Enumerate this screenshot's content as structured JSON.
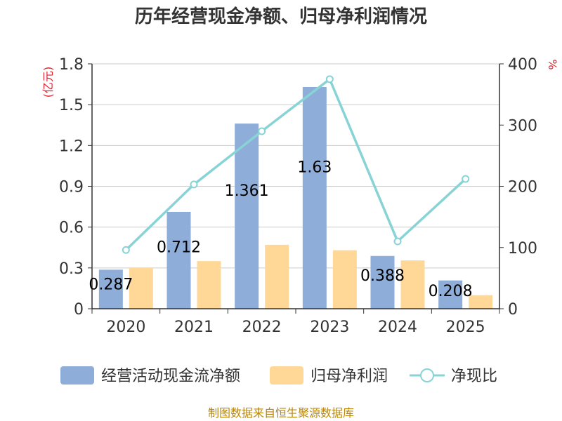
{
  "chart_data": {
    "type": "bar",
    "title": "历年经营现金净额、归母净利润情况",
    "categories": [
      "2020",
      "2021",
      "2022",
      "2023",
      "2024",
      "2025"
    ],
    "series": [
      {
        "name": "经营活动现金流净额",
        "type": "bar",
        "axis": "left",
        "values": [
          0.287,
          0.712,
          1.361,
          1.63,
          0.388,
          0.208
        ],
        "labels": [
          "0.287",
          "0.712",
          "1.361",
          "1.63",
          "0.388",
          "0.208"
        ],
        "color": "#8eadd8"
      },
      {
        "name": "归母净利润",
        "type": "bar",
        "axis": "left",
        "values": [
          0.3,
          0.35,
          0.47,
          0.43,
          0.355,
          0.1
        ],
        "color": "#ffd898"
      },
      {
        "name": "净现比",
        "type": "line",
        "axis": "right",
        "values": [
          96,
          203,
          290,
          375,
          110,
          212
        ],
        "color": "#88d3d6"
      }
    ],
    "left_axis": {
      "label": "(亿元)",
      "ylim": [
        0,
        1.8
      ],
      "ticks": [
        "0",
        "0.3",
        "0.6",
        "0.9",
        "1.2",
        "1.5",
        "1.8"
      ]
    },
    "right_axis": {
      "label": "%",
      "ylim": [
        0,
        400
      ],
      "ticks": [
        "0",
        "100",
        "200",
        "300",
        "400"
      ]
    },
    "grid": true,
    "legend_position": "bottom",
    "source": "制图数据来自恒生聚源数据库"
  }
}
